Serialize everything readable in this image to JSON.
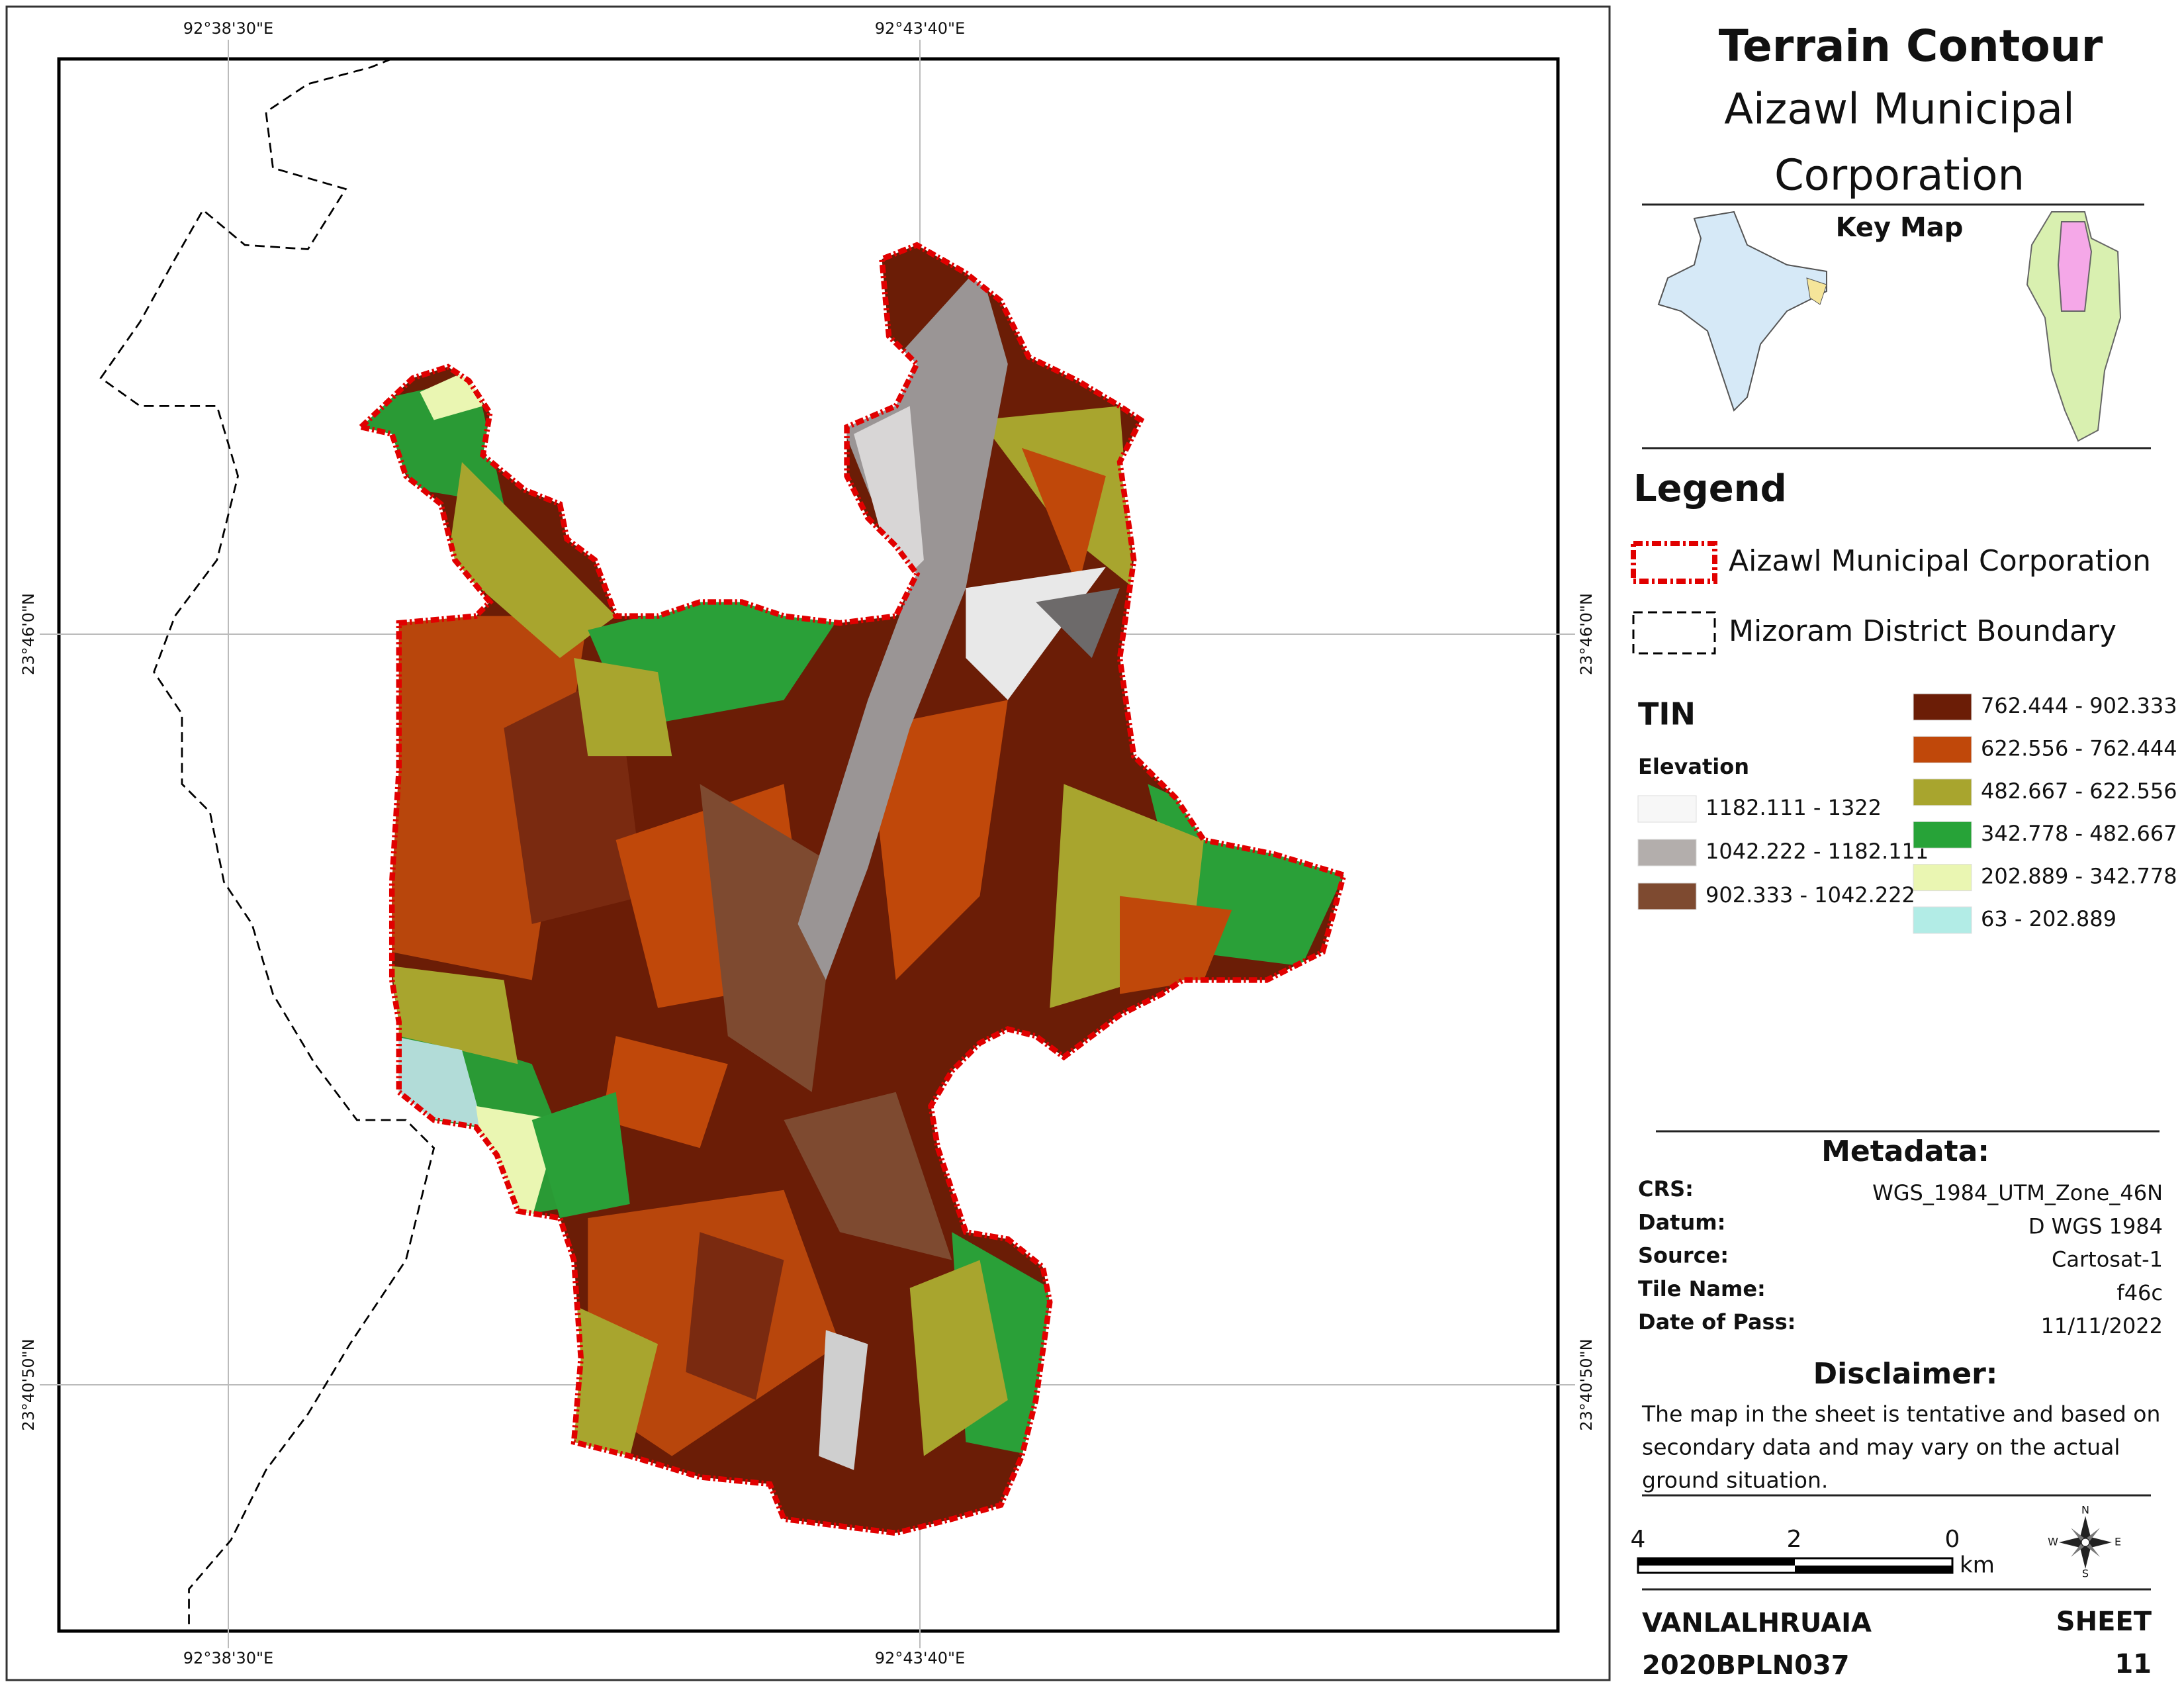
{
  "header": {
    "title": "Terrain Contour",
    "subtitle": [
      "Aizawl Municipal",
      "Corporation"
    ]
  },
  "key_map": {
    "label": "Key Map"
  },
  "grid_labels": {
    "top": [
      "92°38'30\"E",
      "92°43'40\"E"
    ],
    "bottom": [
      "92°38'30\"E",
      "92°43'40\"E"
    ],
    "left": [
      "23°46'0\"N",
      "23°40'50\"N"
    ],
    "right": [
      "23°46'0\"N",
      "23°40'50\"N"
    ]
  },
  "legend": {
    "title": "Legend",
    "items": [
      {
        "label": "Aizawl Municipal Corporation"
      },
      {
        "label": "Mizoram District Boundary"
      }
    ],
    "tin": {
      "title": "TIN",
      "subtitle": "Elevation",
      "classes": [
        {
          "label": "1182.111 - 1322",
          "color": "#f7f7f7"
        },
        {
          "label": "1042.222 - 1182.111",
          "color": "#b3aeac"
        },
        {
          "label": "902.333 - 1042.222",
          "color": "#7e4a30"
        },
        {
          "label": "762.444 - 902.333",
          "color": "#6b1d06"
        },
        {
          "label": "622.556 - 762.444",
          "color": "#c0480a"
        },
        {
          "label": "482.667 - 622.556",
          "color": "#a8a52e"
        },
        {
          "label": "342.778 - 482.667",
          "color": "#27a338"
        },
        {
          "label": "202.889 - 342.778",
          "color": "#eaf6b2"
        },
        {
          "label": "63 - 202.889",
          "color": "#b2ece6"
        }
      ]
    }
  },
  "metadata": {
    "title": "Metadata:",
    "rows": [
      [
        "CRS:",
        "WGS_1984_UTM_Zone_46N"
      ],
      [
        "Datum:",
        "D WGS 1984"
      ],
      [
        "Source:",
        "Cartosat-1"
      ],
      [
        "Tile Name:",
        "f46c"
      ],
      [
        "Date of Pass:",
        "11/11/2022"
      ]
    ]
  },
  "disclaimer": {
    "title": "Disclaimer:",
    "lines": [
      "The map in the sheet is tentative and based on",
      "secondary data and may vary on the actual",
      "ground situation."
    ]
  },
  "scale": {
    "labels": [
      4,
      2,
      0
    ],
    "unit": "km"
  },
  "compass": {
    "n": "N",
    "e": "E",
    "s": "S",
    "w": "W"
  },
  "footer": {
    "author": "VANLALHRUAIA",
    "id": "2020BPLN037",
    "sheet_label": "SHEET",
    "sheet_number": "11"
  }
}
